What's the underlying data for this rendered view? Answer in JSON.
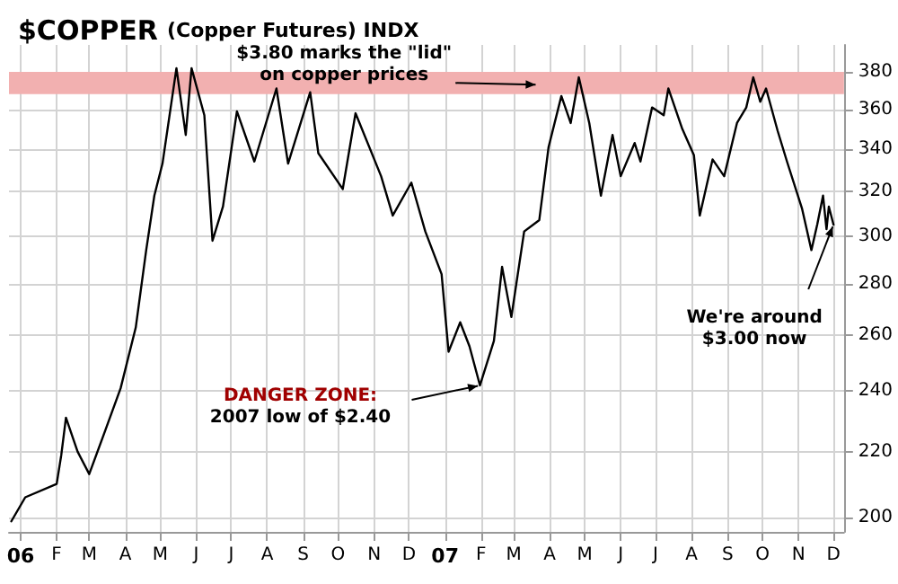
{
  "chart_data": {
    "type": "line",
    "title": "$COPPER (Copper Futures) INDX",
    "x": [
      "2005-12-24",
      "2006-01-05",
      "2006-02-01",
      "2006-02-05",
      "2006-02-09",
      "2006-02-19",
      "2006-03-01",
      "2006-03-15",
      "2006-03-28",
      "2006-04-10",
      "2006-04-19",
      "2006-04-26",
      "2006-05-03",
      "2006-05-15",
      "2006-05-23",
      "2006-05-28",
      "2006-06-08",
      "2006-06-15",
      "2006-06-24",
      "2006-07-06",
      "2006-07-21",
      "2006-08-09",
      "2006-08-19",
      "2006-09-07",
      "2006-09-14",
      "2006-10-05",
      "2006-10-16",
      "2006-11-07",
      "2006-11-17",
      "2006-12-03",
      "2006-12-15",
      "2006-12-29",
      "2007-01-04",
      "2007-01-14",
      "2007-01-22",
      "2007-01-31",
      "2007-02-12",
      "2007-02-19",
      "2007-02-27",
      "2007-03-10",
      "2007-03-23",
      "2007-03-31",
      "2007-04-11",
      "2007-04-19",
      "2007-04-26",
      "2007-05-05",
      "2007-05-15",
      "2007-05-25",
      "2007-06-01",
      "2007-06-13",
      "2007-06-18",
      "2007-06-28",
      "2007-07-08",
      "2007-07-12",
      "2007-07-24",
      "2007-08-03",
      "2007-08-08",
      "2007-08-19",
      "2007-08-29",
      "2007-09-09",
      "2007-09-17",
      "2007-09-23",
      "2007-09-29",
      "2007-10-04",
      "2007-10-14",
      "2007-10-22",
      "2007-11-04",
      "2007-11-12",
      "2007-11-17",
      "2007-11-22",
      "2007-11-25",
      "2007-11-27",
      "2007-12-01"
    ],
    "series": [
      {
        "color": "#000000",
        "values": [
          199,
          206,
          210,
          219,
          231,
          220,
          213,
          227,
          241,
          263,
          294,
          318,
          333,
          382,
          347,
          382,
          357,
          298,
          313,
          359,
          334,
          371,
          333,
          369,
          338,
          321,
          358,
          327,
          309,
          324,
          302,
          284,
          254,
          265,
          256,
          242,
          258,
          287,
          267,
          302,
          307,
          341,
          367,
          353,
          377,
          353,
          318,
          347,
          327,
          343,
          334,
          361,
          357,
          371,
          350,
          337,
          309,
          335,
          327,
          353,
          361,
          377,
          364,
          371,
          349,
          334,
          312,
          294,
          305,
          318,
          303,
          313,
          305
        ]
      }
    ],
    "xlim": [
      "2005-12-22",
      "2007-12-10"
    ],
    "xticks": [
      {
        "value": "2006-01-01",
        "label": "06"
      },
      {
        "value": "2006-02-01",
        "label": "F"
      },
      {
        "value": "2006-03-01",
        "label": "M"
      },
      {
        "value": "2006-04-01",
        "label": "A"
      },
      {
        "value": "2006-05-01",
        "label": "M"
      },
      {
        "value": "2006-06-01",
        "label": "J"
      },
      {
        "value": "2006-07-01",
        "label": "J"
      },
      {
        "value": "2006-08-01",
        "label": "A"
      },
      {
        "value": "2006-09-01",
        "label": "S"
      },
      {
        "value": "2006-10-01",
        "label": "O"
      },
      {
        "value": "2006-11-01",
        "label": "N"
      },
      {
        "value": "2006-12-01",
        "label": "D"
      },
      {
        "value": "2007-01-01",
        "label": "07"
      },
      {
        "value": "2007-02-01",
        "label": "F"
      },
      {
        "value": "2007-03-01",
        "label": "M"
      },
      {
        "value": "2007-04-01",
        "label": "A"
      },
      {
        "value": "2007-05-01",
        "label": "M"
      },
      {
        "value": "2007-06-01",
        "label": "J"
      },
      {
        "value": "2007-07-01",
        "label": "J"
      },
      {
        "value": "2007-08-01",
        "label": "A"
      },
      {
        "value": "2007-09-01",
        "label": "S"
      },
      {
        "value": "2007-10-01",
        "label": "O"
      },
      {
        "value": "2007-11-01",
        "label": "N"
      },
      {
        "value": "2007-12-01",
        "label": "D"
      }
    ],
    "ylim": [
      196,
      395
    ],
    "yticks": [
      200,
      220,
      240,
      260,
      280,
      300,
      320,
      340,
      360,
      380
    ],
    "log": "y",
    "bands": [
      {
        "axis": "y",
        "from": 368,
        "to": 380,
        "color": "#f2b0b0"
      }
    ],
    "annotations": [
      {
        "text": "$3.80 marks the \"lid\"\non copper prices",
        "x": "2007-03-22",
        "y": 373
      },
      {
        "text": "DANGER ZONE:\n2007 low of $2.40",
        "x": "2007-01-31",
        "y": 242
      },
      {
        "text": "We're around\n$3.00 now",
        "x": "2007-12-01",
        "y": 305
      }
    ],
    "grid": true,
    "marker": "none",
    "line_style": "solid"
  }
}
